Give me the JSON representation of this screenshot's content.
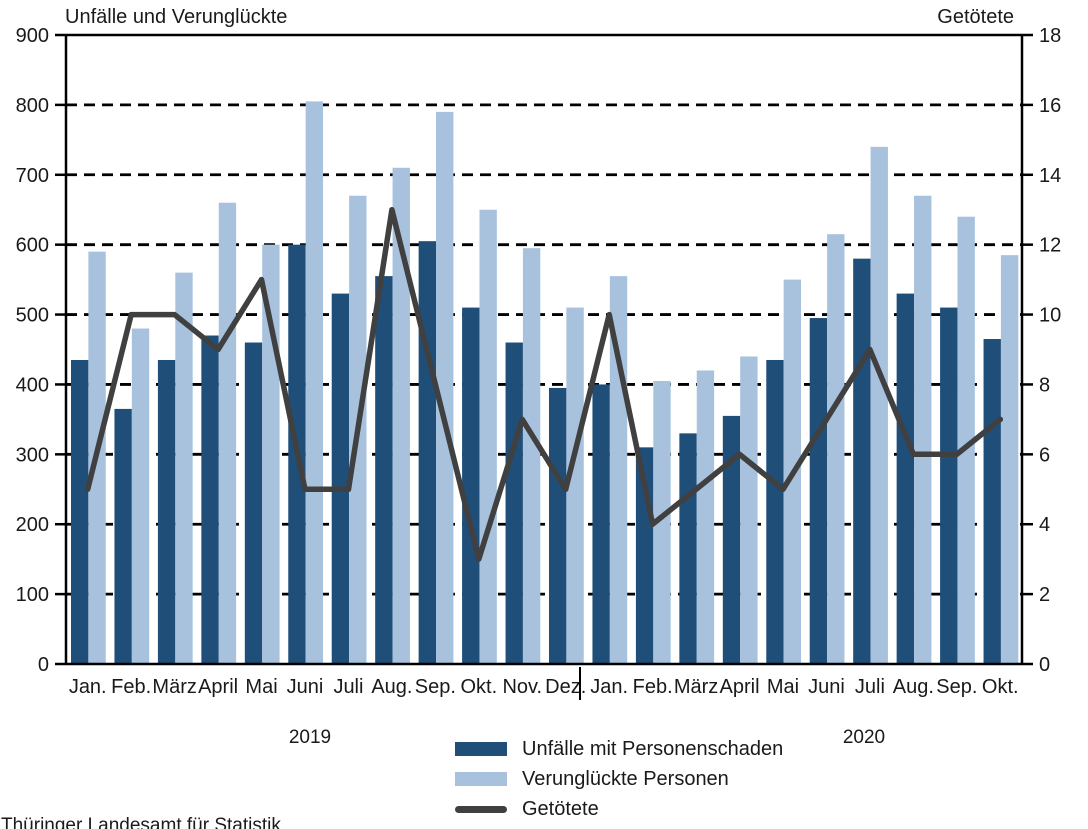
{
  "footer": {
    "source": "Thüringer Landesamt für Statistik"
  },
  "legend": [
    {
      "label": "Unfälle mit Personenschaden",
      "type": "bar",
      "color": "#1F4E79"
    },
    {
      "label": "Verunglückte Personen",
      "type": "bar",
      "color": "#A8C2DE"
    },
    {
      "label": "Getötete",
      "type": "line",
      "color": "#404040"
    }
  ],
  "chart_data": {
    "type": "bar+line",
    "grid": "horizontal dashed",
    "years": [
      {
        "label": "2019"
      },
      {
        "label": "2020"
      }
    ],
    "categories": [
      "Jan.",
      "Feb.",
      "März",
      "April",
      "Mai",
      "Juni",
      "Juli",
      "Aug.",
      "Sep.",
      "Okt.",
      "Nov.",
      "Dez.",
      "Jan.",
      "Feb.",
      "März",
      "April",
      "Mai",
      "Juni",
      "Juli",
      "Aug.",
      "Sep.",
      "Okt."
    ],
    "left_axis": {
      "title": "Unfälle und Verunglückte",
      "min": 0,
      "max": 900,
      "step": 100,
      "ticks": [
        0,
        100,
        200,
        300,
        400,
        500,
        600,
        700,
        800,
        900
      ]
    },
    "right_axis": {
      "title": "Getötete",
      "min": 0,
      "max": 18,
      "step": 2,
      "ticks": [
        0,
        2,
        4,
        6,
        8,
        10,
        12,
        14,
        16,
        18
      ]
    },
    "series": [
      {
        "name": "Unfälle mit Personenschaden",
        "type": "bar",
        "axis": "left",
        "color": "#1F4E79",
        "values": [
          435,
          365,
          435,
          470,
          460,
          600,
          530,
          555,
          605,
          510,
          460,
          395,
          400,
          310,
          330,
          355,
          435,
          495,
          580,
          530,
          510,
          465
        ]
      },
      {
        "name": "Verunglückte Personen",
        "type": "bar",
        "axis": "left",
        "color": "#A8C2DE",
        "values": [
          590,
          480,
          560,
          660,
          600,
          805,
          670,
          710,
          790,
          650,
          595,
          510,
          555,
          405,
          420,
          440,
          550,
          615,
          740,
          670,
          640,
          585
        ]
      },
      {
        "name": "Getötete",
        "type": "line",
        "axis": "right",
        "color": "#404040",
        "values": [
          5,
          10,
          10,
          9,
          11,
          5,
          5,
          13,
          8,
          3,
          7,
          5,
          10,
          4,
          5,
          6,
          5,
          7,
          9,
          6,
          6,
          7
        ]
      }
    ]
  }
}
